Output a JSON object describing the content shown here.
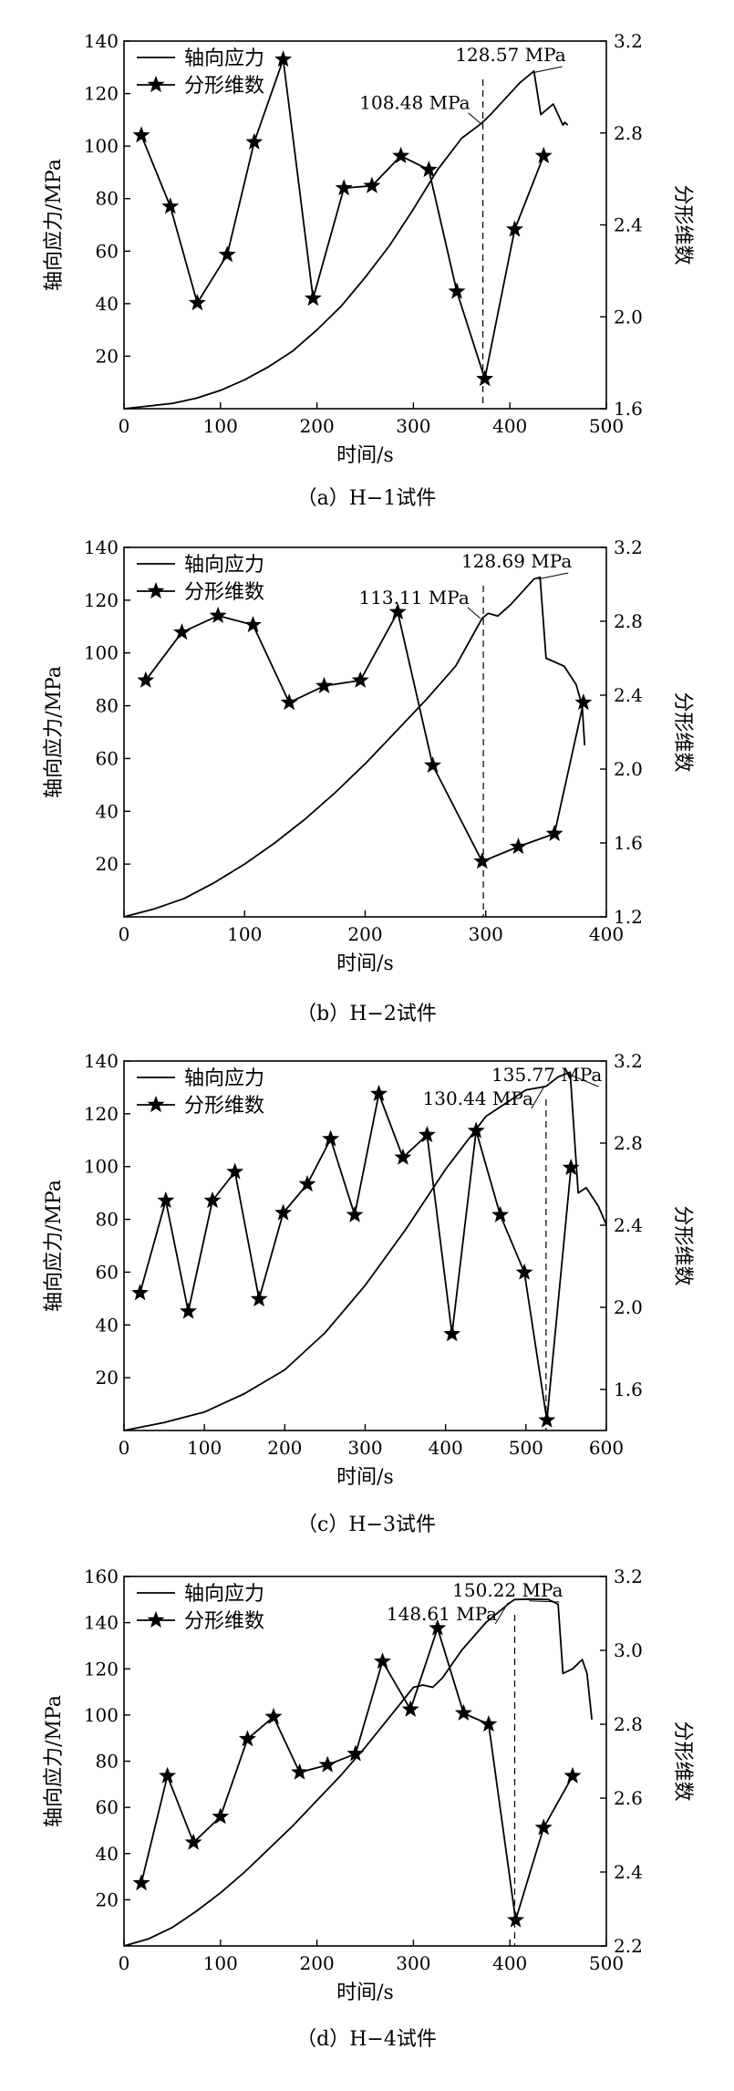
{
  "figure": {
    "legend_labels": [
      "轴向应力",
      "分形维数"
    ]
  },
  "chart_data": [
    {
      "type": "line",
      "caption": "（a）H−1试件",
      "xlabel": "时间/s",
      "ylabel": "轴向应力/MPa",
      "y2label": "分形维数",
      "xlim": [
        0,
        500
      ],
      "ylim": [
        0,
        140
      ],
      "y2lim": [
        1.6,
        3.2
      ],
      "xticks": [
        0,
        100,
        200,
        300,
        400,
        500
      ],
      "yticks": [
        20,
        40,
        60,
        80,
        100,
        120,
        140
      ],
      "y2ticks": [
        1.6,
        2.0,
        2.4,
        2.8,
        3.2
      ],
      "series": [
        {
          "name": "轴向应力",
          "axis": "left",
          "x": [
            0,
            25,
            50,
            75,
            100,
            125,
            150,
            175,
            200,
            225,
            250,
            275,
            300,
            325,
            350,
            370,
            380,
            395,
            410,
            425,
            432,
            445,
            455,
            457,
            460
          ],
          "y": [
            0,
            1,
            2,
            4,
            7,
            11,
            16,
            22,
            30,
            39,
            50,
            62,
            76,
            91,
            103,
            108.5,
            112,
            118,
            124,
            128.57,
            112,
            116,
            108,
            109,
            108
          ]
        },
        {
          "name": "分形维数",
          "axis": "right",
          "marker": "star",
          "x": [
            18,
            48,
            76,
            107,
            135,
            165,
            196,
            228,
            257,
            287,
            316,
            345,
            374,
            405,
            435
          ],
          "y": [
            2.79,
            2.48,
            2.06,
            2.27,
            2.76,
            3.12,
            2.08,
            2.56,
            2.57,
            2.7,
            2.64,
            2.11,
            1.73,
            2.38,
            2.7
          ]
        }
      ],
      "annotations": [
        {
          "text": "128.57 MPa",
          "x": 425,
          "y": 128.57
        },
        {
          "text": "108.48 MPa",
          "x": 372,
          "y": 108.48
        }
      ],
      "dashed_x": 372
    },
    {
      "type": "line",
      "caption": "（b）H−2试件",
      "xlabel": "时间/s",
      "ylabel": "轴向应力/MPa",
      "y2label": "分形维数",
      "xlim": [
        0,
        400
      ],
      "ylim": [
        0,
        140
      ],
      "y2lim": [
        1.2,
        3.2
      ],
      "xticks": [
        0,
        100,
        200,
        300,
        400
      ],
      "yticks": [
        20,
        40,
        60,
        80,
        100,
        120,
        140
      ],
      "y2ticks": [
        1.2,
        1.6,
        2.0,
        2.4,
        2.8,
        3.2
      ],
      "series": [
        {
          "name": "轴向应力",
          "axis": "left",
          "x": [
            0,
            25,
            50,
            75,
            100,
            125,
            150,
            175,
            200,
            225,
            250,
            275,
            297,
            302,
            310,
            320,
            330,
            340,
            345,
            350,
            365,
            375,
            380,
            382
          ],
          "y": [
            0,
            3,
            7,
            13,
            20,
            28,
            37,
            47,
            58,
            70,
            82,
            95,
            113.11,
            115,
            114,
            118,
            123,
            128,
            128.69,
            98,
            95,
            88,
            80,
            65
          ]
        },
        {
          "name": "分形维数",
          "axis": "right",
          "marker": "star",
          "x": [
            18,
            48,
            78,
            107,
            137,
            166,
            196,
            227,
            256,
            297,
            327,
            357,
            381
          ],
          "y": [
            2.48,
            2.74,
            2.83,
            2.78,
            2.36,
            2.45,
            2.48,
            2.85,
            2.02,
            1.5,
            1.58,
            1.65,
            2.36
          ]
        }
      ],
      "annotations": [
        {
          "text": "128.69 MPa",
          "x": 345,
          "y": 128.69
        },
        {
          "text": "113.11 MPa",
          "x": 297,
          "y": 113.11
        }
      ],
      "dashed_x": 298
    },
    {
      "type": "line",
      "caption": "（c）H−3试件",
      "xlabel": "时间/s",
      "ylabel": "轴向应力/MPa",
      "y2label": "分形维数",
      "xlim": [
        0,
        600
      ],
      "ylim": [
        0,
        140
      ],
      "y2lim": [
        1.4,
        3.2
      ],
      "xticks": [
        0,
        100,
        200,
        300,
        400,
        500,
        600
      ],
      "yticks": [
        20,
        40,
        60,
        80,
        100,
        120,
        140
      ],
      "y2ticks": [
        1.6,
        2.0,
        2.4,
        2.8,
        3.2
      ],
      "series": [
        {
          "name": "轴向应力",
          "axis": "left",
          "x": [
            0,
            50,
            100,
            150,
            200,
            250,
            300,
            350,
            400,
            450,
            500,
            525,
            540,
            555,
            565,
            575,
            590,
            600
          ],
          "y": [
            0,
            3,
            7,
            14,
            23,
            37,
            55,
            76,
            99,
            119,
            129,
            130.44,
            134,
            135.77,
            90,
            92,
            85,
            78
          ]
        },
        {
          "name": "分形维数",
          "axis": "right",
          "marker": "star",
          "x": [
            20,
            52,
            80,
            110,
            138,
            168,
            198,
            228,
            257,
            287,
            317,
            347,
            377,
            408,
            438,
            468,
            498,
            526,
            556
          ],
          "y": [
            2.07,
            2.52,
            1.98,
            2.52,
            2.66,
            2.04,
            2.46,
            2.6,
            2.82,
            2.45,
            3.04,
            2.73,
            2.84,
            1.87,
            2.86,
            2.45,
            2.17,
            1.45,
            2.68
          ]
        }
      ],
      "annotations": [
        {
          "text": "135.77 MPa",
          "x": 555,
          "y": 135.77
        },
        {
          "text": "130.44 MPa",
          "x": 525,
          "y": 130.44
        }
      ],
      "dashed_x": 525
    },
    {
      "type": "line",
      "caption": "（d）H−4试件",
      "xlabel": "时间/s",
      "ylabel": "轴向应力/MPa",
      "y2label": "分形维数",
      "xlim": [
        0,
        500
      ],
      "ylim": [
        0,
        160
      ],
      "y2lim": [
        2.2,
        3.2
      ],
      "xticks": [
        0,
        100,
        200,
        300,
        400,
        500
      ],
      "yticks": [
        20,
        40,
        60,
        80,
        100,
        120,
        140,
        160
      ],
      "y2ticks": [
        2.2,
        2.4,
        2.6,
        2.8,
        3.0,
        3.2
      ],
      "series": [
        {
          "name": "轴向应力",
          "axis": "left",
          "x": [
            0,
            25,
            50,
            75,
            100,
            125,
            150,
            175,
            200,
            225,
            250,
            275,
            300,
            310,
            320,
            330,
            350,
            375,
            400,
            405,
            420,
            440,
            450,
            455,
            465,
            475,
            480,
            485
          ],
          "y": [
            0,
            3,
            8,
            15,
            23,
            32,
            42,
            52,
            63,
            74,
            86,
            99,
            112,
            113,
            112,
            116,
            128,
            140,
            148.61,
            150,
            150.22,
            150,
            148,
            118,
            120,
            124,
            118,
            98
          ]
        },
        {
          "name": "分形维数",
          "axis": "right",
          "marker": "star",
          "x": [
            18,
            45,
            72,
            100,
            128,
            155,
            182,
            211,
            240,
            268,
            297,
            325,
            352,
            378,
            406,
            435,
            465
          ],
          "y": [
            2.37,
            2.66,
            2.48,
            2.55,
            2.76,
            2.82,
            2.67,
            2.69,
            2.72,
            2.97,
            2.84,
            3.06,
            2.83,
            2.8,
            2.27,
            2.52,
            2.66
          ]
        }
      ],
      "annotations": [
        {
          "text": "150.22 MPa",
          "x": 422,
          "y": 150.22
        },
        {
          "text": "148.61 MPa",
          "x": 400,
          "y": 148.61
        }
      ],
      "dashed_x": 405
    }
  ]
}
